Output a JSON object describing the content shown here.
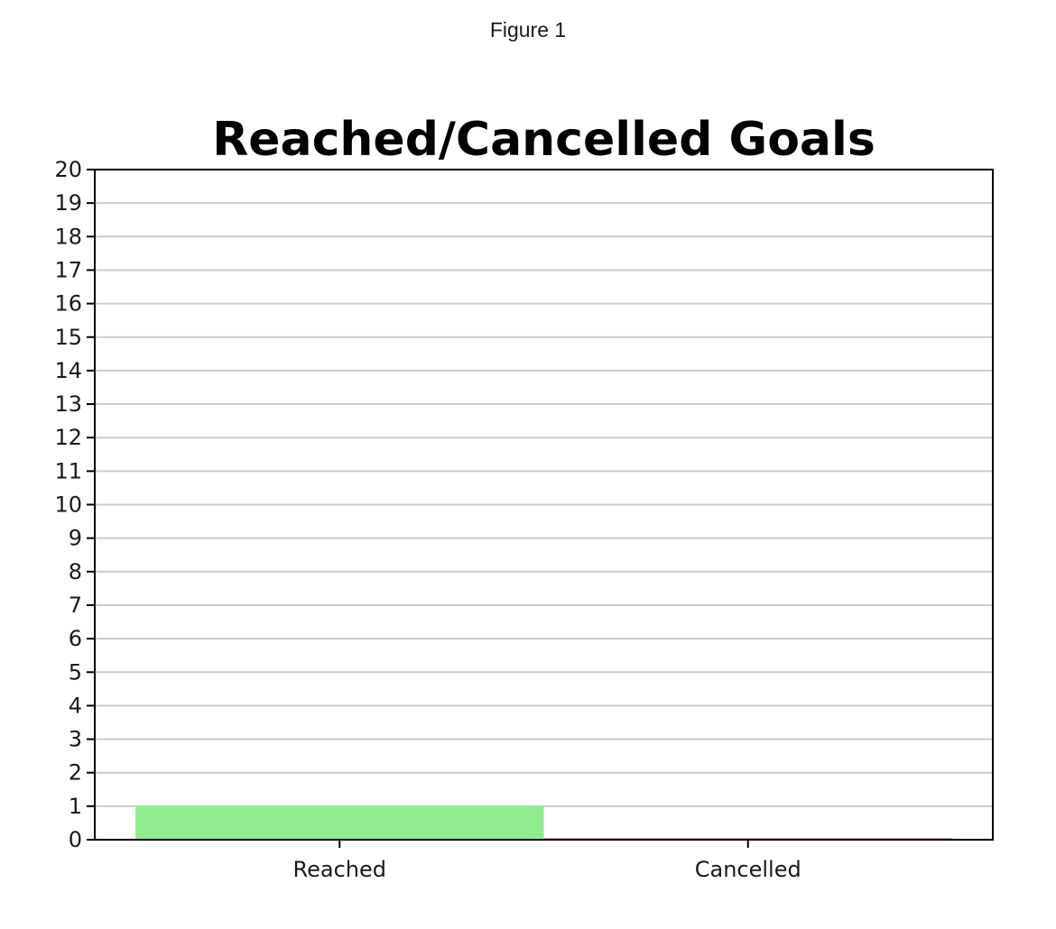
{
  "window": {
    "title": "Figure 1"
  },
  "chart_data": {
    "type": "bar",
    "title": "Reached/Cancelled Goals",
    "xlabel": "",
    "ylabel": "",
    "categories": [
      "Reached",
      "Cancelled"
    ],
    "values": [
      1,
      0
    ],
    "colors": [
      "#90ee90",
      "#d9a0a0"
    ],
    "ylim": [
      0,
      20
    ],
    "yticks": [
      0,
      1,
      2,
      3,
      4,
      5,
      6,
      7,
      8,
      9,
      10,
      11,
      12,
      13,
      14,
      15,
      16,
      17,
      18,
      19,
      20
    ],
    "grid": "horizontal",
    "grid_color": "#cccccc",
    "legend": "none"
  }
}
